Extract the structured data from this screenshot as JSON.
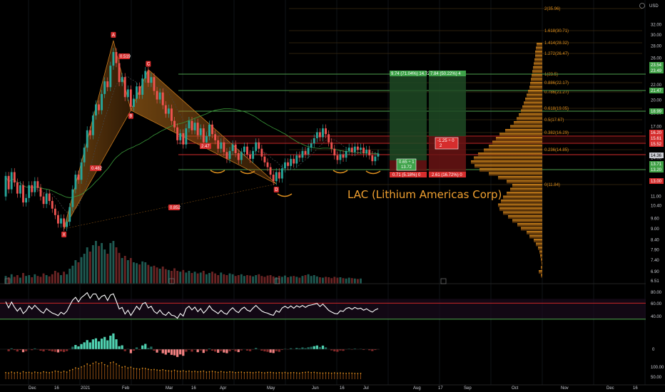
{
  "currency": "USD",
  "chart_title": "LAC (Lithium Americas Corp)",
  "colors": {
    "up": "#26a69a",
    "down": "#ef5350",
    "pattern": "#c77a1e",
    "volume_profile": "#c77a1e",
    "fib": "#d98a1a",
    "level_red": "#e52a2a",
    "level_green": "#58c158",
    "rsi_line": "#ffffff",
    "ma_green": "#3a9a3a"
  },
  "chart_data": [
    {
      "type": "candlestick",
      "series_name": "LAC",
      "price_axis": {
        "unit": "USD",
        "scale": "log",
        "ticks": [
          32.0,
          30.0,
          28.0,
          26.0,
          24.0,
          22.0,
          20.0,
          18.5,
          17.0,
          15.5,
          14.0,
          13.0,
          12.0,
          11.0,
          10.4,
          9.6,
          9.0,
          8.4,
          7.9,
          7.4,
          6.9,
          6.51
        ]
      },
      "time_axis": {
        "ticks": [
          "Dec",
          "16",
          "2021",
          "Feb",
          "Mar",
          "16",
          "Apr",
          "May",
          "Jun",
          "16",
          "Jul",
          "Aug",
          "17",
          "Sep",
          "Oct",
          "Nov",
          "Dec",
          "16"
        ]
      },
      "price_badges": [
        {
          "value": "23.54",
          "color": "green"
        },
        {
          "value": "23.49",
          "color": "green"
        },
        {
          "value": "21.47",
          "color": "green"
        },
        {
          "value": "18.99",
          "color": "green"
        },
        {
          "value": "16.20",
          "color": "red"
        },
        {
          "value": "15.61",
          "color": "red"
        },
        {
          "value": "15.52",
          "color": "red"
        },
        {
          "value": "14.36",
          "color": "gray"
        },
        {
          "value": "13.71",
          "color": "green"
        },
        {
          "value": "13.20",
          "color": "green"
        },
        {
          "value": "13.00",
          "color": "red"
        }
      ],
      "fib_levels": [
        {
          "label": "2(35.96)",
          "price": 35.96
        },
        {
          "label": "1.618(30.71)",
          "price": 30.71
        },
        {
          "label": "1.414(28.32)",
          "price": 28.32
        },
        {
          "label": "1.272(26.47)",
          "price": 26.47
        },
        {
          "label": "1(23.5)",
          "price": 23.5
        },
        {
          "label": "0.886(22.17)",
          "price": 22.17
        },
        {
          "label": "0.786(21.27)",
          "price": 21.27
        },
        {
          "label": "0.618(19.05)",
          "price": 19.05
        },
        {
          "label": "0.5(17.67)",
          "price": 17.67
        },
        {
          "label": "0.382(16.29)",
          "price": 16.29
        },
        {
          "label": "0.236(14.85)",
          "price": 14.85
        },
        {
          "label": "0(11.84)",
          "price": 11.84
        }
      ],
      "harmonic_points": [
        {
          "label": "X",
          "price": 9.0
        },
        {
          "label": "A",
          "price": 29.0
        },
        {
          "label": "B",
          "price": 18.8
        },
        {
          "label": "C",
          "price": 24.2
        },
        {
          "label": "D",
          "price": 11.9
        }
      ],
      "ratio_labels": [
        "0.519",
        "0.482",
        "2.47",
        "0.852"
      ],
      "trade_boxes": [
        {
          "target_label": "9.74 (71.04%) 14.72",
          "stop_label": "0.71 (5.18%) 0",
          "mid_label": "0.65 ÷ 1",
          "mid_value": "13.72"
        },
        {
          "target_label": "7.84 (50.22%) 4",
          "stop_label": "2.61 (16.72%) 0",
          "mid_label": "-1.25 ÷ 0",
          "mid_value": "2"
        }
      ],
      "candles": [
        [
          11.0,
          12.5
        ],
        [
          12.5,
          11.5
        ],
        [
          11.5,
          12.8
        ],
        [
          12.8,
          12.0
        ],
        [
          12.0,
          11.2
        ],
        [
          11.2,
          11.8
        ],
        [
          11.8,
          10.6
        ],
        [
          10.6,
          10.9
        ],
        [
          10.9,
          11.8
        ],
        [
          11.8,
          11.3
        ],
        [
          11.3,
          12.1
        ],
        [
          12.1,
          11.6
        ],
        [
          11.6,
          11.0
        ],
        [
          11.0,
          10.5
        ],
        [
          10.5,
          11.2
        ],
        [
          11.2,
          10.7
        ],
        [
          10.7,
          10.2
        ],
        [
          10.2,
          9.8
        ],
        [
          9.8,
          9.3
        ],
        [
          9.3,
          9.6
        ],
        [
          9.6,
          9.1
        ],
        [
          9.1,
          9.4
        ],
        [
          9.4,
          10.3
        ],
        [
          10.3,
          11.5
        ],
        [
          11.5,
          12.6
        ],
        [
          12.6,
          12.2
        ],
        [
          12.2,
          13.6
        ],
        [
          13.6,
          14.9
        ],
        [
          14.9,
          16.6
        ],
        [
          16.6,
          16.1
        ],
        [
          16.1,
          18.2
        ],
        [
          18.2,
          19.5
        ],
        [
          19.5,
          18.8
        ],
        [
          18.8,
          20.8
        ],
        [
          20.8,
          22.5
        ],
        [
          22.5,
          21.7
        ],
        [
          21.7,
          24.8
        ],
        [
          24.8,
          27.0
        ],
        [
          27.0,
          25.2
        ],
        [
          25.2,
          22.4
        ],
        [
          22.4,
          23.1
        ],
        [
          23.1,
          20.4
        ],
        [
          20.4,
          21.4
        ],
        [
          21.4,
          19.2
        ],
        [
          19.2,
          20.2
        ],
        [
          20.2,
          21.8
        ],
        [
          21.8,
          20.7
        ],
        [
          20.7,
          22.9
        ],
        [
          22.9,
          24.0
        ],
        [
          24.0,
          22.3
        ],
        [
          22.3,
          23.1
        ],
        [
          23.1,
          21.2
        ],
        [
          21.2,
          20.1
        ],
        [
          20.1,
          21.0
        ],
        [
          21.0,
          19.4
        ],
        [
          19.4,
          18.4
        ],
        [
          18.4,
          19.0
        ],
        [
          19.0,
          17.6
        ],
        [
          17.6,
          16.9
        ],
        [
          16.9,
          15.6
        ],
        [
          15.6,
          16.3
        ],
        [
          16.3,
          15.2
        ],
        [
          15.2,
          16.8
        ],
        [
          16.8,
          17.6
        ],
        [
          17.6,
          16.6
        ],
        [
          16.6,
          17.4
        ],
        [
          17.4,
          16.1
        ],
        [
          16.1,
          16.8
        ],
        [
          16.8,
          15.4
        ],
        [
          15.4,
          16.0
        ],
        [
          16.0,
          17.2
        ],
        [
          17.2,
          16.2
        ],
        [
          16.2,
          15.6
        ],
        [
          15.6,
          14.8
        ],
        [
          14.8,
          15.4
        ],
        [
          15.4,
          14.5
        ],
        [
          14.5,
          13.9
        ],
        [
          13.9,
          14.6
        ],
        [
          14.6,
          15.2
        ],
        [
          15.2,
          14.4
        ],
        [
          14.4,
          13.8
        ],
        [
          13.8,
          14.5
        ],
        [
          14.5,
          15.0
        ],
        [
          15.0,
          14.3
        ],
        [
          14.3,
          13.9
        ],
        [
          13.9,
          14.6
        ],
        [
          14.6,
          15.4
        ],
        [
          15.4,
          14.8
        ],
        [
          14.8,
          14.1
        ],
        [
          14.1,
          13.6
        ],
        [
          13.6,
          13.2
        ],
        [
          13.2,
          12.6
        ],
        [
          12.6,
          12.1
        ],
        [
          12.1,
          12.8
        ],
        [
          12.8,
          12.3
        ],
        [
          12.3,
          13.1
        ],
        [
          13.1,
          13.6
        ],
        [
          13.6,
          13.3
        ],
        [
          13.3,
          13.9
        ],
        [
          13.9,
          13.5
        ],
        [
          13.5,
          14.2
        ],
        [
          14.2,
          14.0
        ],
        [
          14.0,
          14.6
        ],
        [
          14.6,
          14.3
        ],
        [
          14.3,
          14.9
        ],
        [
          14.9,
          15.3
        ],
        [
          15.3,
          15.8
        ],
        [
          15.8,
          16.4
        ],
        [
          16.4,
          15.9
        ],
        [
          15.9,
          16.8
        ],
        [
          16.8,
          16.2
        ],
        [
          16.2,
          15.4
        ],
        [
          15.4,
          14.8
        ],
        [
          14.8,
          14.2
        ],
        [
          14.2,
          13.8
        ],
        [
          13.8,
          14.3
        ],
        [
          14.3,
          14.0
        ],
        [
          14.0,
          14.6
        ],
        [
          14.6,
          14.9
        ],
        [
          14.9,
          14.5
        ],
        [
          14.5,
          15.0
        ],
        [
          15.0,
          14.7
        ],
        [
          14.7,
          14.9
        ],
        [
          14.9,
          14.4
        ],
        [
          14.4,
          14.7
        ],
        [
          14.7,
          14.2
        ],
        [
          14.2,
          13.7
        ],
        [
          13.7,
          14.1
        ],
        [
          14.1,
          14.36
        ]
      ],
      "volume": [
        0.18,
        0.15,
        0.22,
        0.16,
        0.2,
        0.14,
        0.25,
        0.18,
        0.2,
        0.15,
        0.22,
        0.18,
        0.16,
        0.24,
        0.2,
        0.17,
        0.22,
        0.3,
        0.26,
        0.2,
        0.28,
        0.22,
        0.35,
        0.42,
        0.55,
        0.5,
        0.62,
        0.7,
        0.85,
        0.75,
        0.9,
        1.0,
        0.88,
        0.95,
        0.8,
        0.7,
        0.95,
        1.0,
        0.85,
        0.72,
        0.6,
        0.65,
        0.55,
        0.6,
        0.5,
        0.48,
        0.45,
        0.52,
        0.5,
        0.44,
        0.4,
        0.42,
        0.38,
        0.35,
        0.4,
        0.34,
        0.32,
        0.3,
        0.36,
        0.3,
        0.28,
        0.32,
        0.26,
        0.3,
        0.25,
        0.28,
        0.24,
        0.26,
        0.3,
        0.22,
        0.25,
        0.28,
        0.24,
        0.2,
        0.26,
        0.22,
        0.2,
        0.24,
        0.22,
        0.18,
        0.2,
        0.22,
        0.18,
        0.2,
        0.19,
        0.17,
        0.2,
        0.22,
        0.18,
        0.16,
        0.19,
        0.2,
        0.17,
        0.15,
        0.18,
        0.16,
        0.19,
        0.15,
        0.17,
        0.18,
        0.16,
        0.14,
        0.18,
        0.2,
        0.22,
        0.18,
        0.2,
        0.17,
        0.15,
        0.14,
        0.16,
        0.15,
        0.13,
        0.16,
        0.14,
        0.15,
        0.13,
        0.12,
        0.14,
        0.13,
        0.12,
        0.11,
        0.12
      ],
      "volume_profile": [
        0.02,
        0.05,
        0.02,
        0.01,
        0.02,
        0.03,
        0.04,
        0.06,
        0.09,
        0.12,
        0.18,
        0.22,
        0.3,
        0.35,
        0.42,
        0.48,
        0.55,
        0.6,
        0.62,
        0.58,
        0.55,
        0.5,
        0.45,
        0.42,
        0.5,
        0.62,
        0.75,
        0.88,
        0.95,
        1.0,
        0.96,
        0.9,
        0.82,
        0.75,
        0.7,
        0.65,
        0.6,
        0.52,
        0.45,
        0.4,
        0.36,
        0.33,
        0.3,
        0.28,
        0.26,
        0.24,
        0.22,
        0.2,
        0.18,
        0.17,
        0.16,
        0.15,
        0.14,
        0.13,
        0.12,
        0.11,
        0.1,
        0.1,
        0.09,
        0.08
      ]
    },
    {
      "type": "line",
      "series_name": "RSI",
      "axis_ticks": [
        "80.00",
        "60.00",
        "40.00"
      ],
      "levels": [
        70,
        30
      ]
    },
    {
      "type": "bar",
      "series_name": "MACD",
      "axis_ticks": [
        "0"
      ]
    },
    {
      "type": "bar",
      "series_name": "Volume oscillator",
      "axis_ticks": [
        "100.00",
        "50.00"
      ]
    }
  ]
}
